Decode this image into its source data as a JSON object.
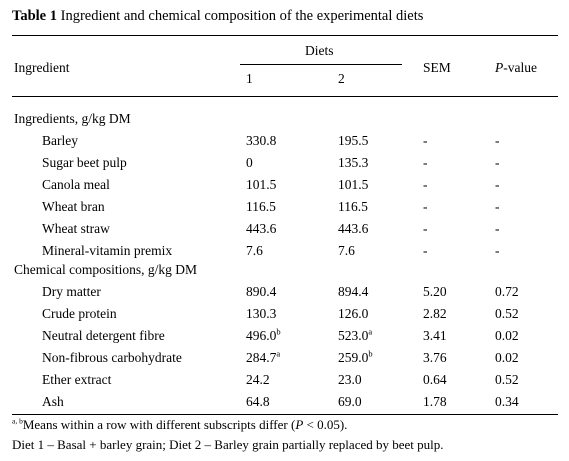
{
  "table": {
    "label": "Table 1",
    "title": "Ingredient and chemical composition of the experimental diets",
    "header": {
      "ingredient": "Ingredient",
      "diets": "Diets",
      "diet1": "1",
      "diet2": "2",
      "sem": "SEM",
      "pvalue_p": "P",
      "pvalue_rest": "-value"
    },
    "sections": [
      {
        "label": "Ingredients, g/kg DM",
        "rows": [
          {
            "name": "Barley",
            "d1": "330.8",
            "d1_sup": "",
            "d2": "195.5",
            "d2_sup": "",
            "sem": "-",
            "p": "-"
          },
          {
            "name": "Sugar beet pulp",
            "d1": "0",
            "d1_sup": "",
            "d2": "135.3",
            "d2_sup": "",
            "sem": "-",
            "p": "-"
          },
          {
            "name": "Canola meal",
            "d1": "101.5",
            "d1_sup": "",
            "d2": "101.5",
            "d2_sup": "",
            "sem": "-",
            "p": "-"
          },
          {
            "name": "Wheat bran",
            "d1": "116.5",
            "d1_sup": "",
            "d2": "116.5",
            "d2_sup": "",
            "sem": "-",
            "p": "-"
          },
          {
            "name": "Wheat straw",
            "d1": "443.6",
            "d1_sup": "",
            "d2": "443.6",
            "d2_sup": "",
            "sem": "-",
            "p": "-"
          },
          {
            "name": "Mineral-vitamin premix",
            "d1": "7.6",
            "d1_sup": "",
            "d2": "7.6",
            "d2_sup": "",
            "sem": "-",
            "p": "-"
          }
        ]
      },
      {
        "label": "Chemical compositions, g/kg DM",
        "rows": [
          {
            "name": "Dry matter",
            "d1": "890.4",
            "d1_sup": "",
            "d2": "894.4",
            "d2_sup": "",
            "sem": "5.20",
            "p": "0.72"
          },
          {
            "name": "Crude protein",
            "d1": "130.3",
            "d1_sup": "",
            "d2": "126.0",
            "d2_sup": "",
            "sem": "2.82",
            "p": "0.52"
          },
          {
            "name": "Neutral detergent fibre",
            "d1": "496.0",
            "d1_sup": "b",
            "d2": "523.0",
            "d2_sup": "a",
            "sem": "3.41",
            "p": "0.02"
          },
          {
            "name": "Non-fibrous carbohydrate",
            "d1": "284.7",
            "d1_sup": "a",
            "d2": "259.0",
            "d2_sup": "b",
            "sem": "3.76",
            "p": "0.02"
          },
          {
            "name": "Ether extract",
            "d1": "24.2",
            "d1_sup": "",
            "d2": "23.0",
            "d2_sup": "",
            "sem": "0.64",
            "p": "0.52"
          },
          {
            "name": "Ash",
            "d1": "64.8",
            "d1_sup": "",
            "d2": "69.0",
            "d2_sup": "",
            "sem": "1.78",
            "p": "0.34"
          }
        ]
      }
    ],
    "footnotes": {
      "sup_marks": "a, b",
      "means_text": "Means within a row with different subscripts differ (",
      "means_p": "P",
      "means_end": " < 0.05).",
      "diet_note": "Diet 1 – Basal + barley grain;  Diet 2 – Barley grain partially replaced by beet pulp."
    }
  }
}
